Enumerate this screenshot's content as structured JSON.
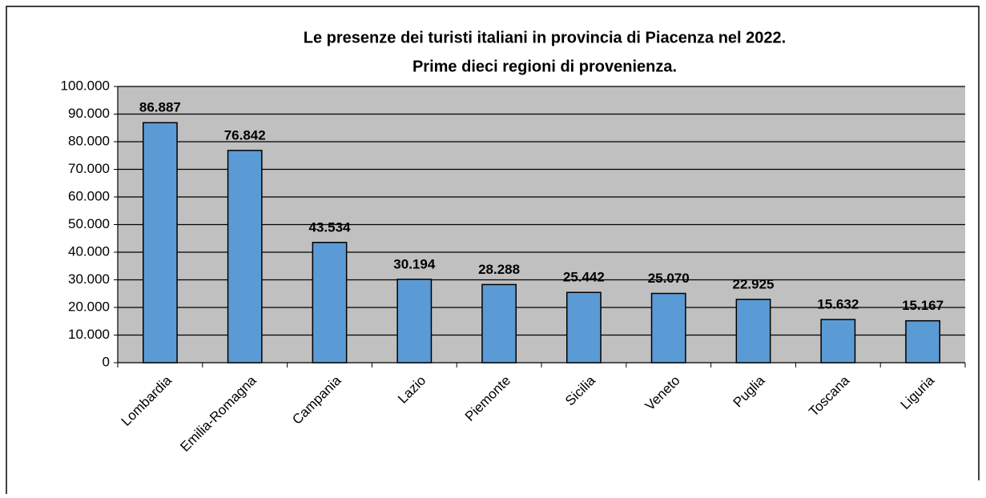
{
  "chart_data": {
    "type": "bar",
    "title": "Le presenze dei turisti italiani in provincia di Piacenza nel 2022.",
    "subtitle": "Prime dieci regioni di provenienza.",
    "categories": [
      "Lombardia",
      "Emilia-Romagna",
      "Campania",
      "Lazio",
      "Piemonte",
      "Sicilia",
      "Veneto",
      "Puglia",
      "Toscana",
      "Liguria"
    ],
    "values": [
      86887,
      76842,
      43534,
      30194,
      28288,
      25442,
      25070,
      22925,
      15632,
      15167
    ],
    "value_labels": [
      "86.887",
      "76.842",
      "43.534",
      "30.194",
      "28.288",
      "25.442",
      "25.070",
      "22.925",
      "15.632",
      "15.167"
    ],
    "color": "#5b9bd5",
    "ylim": [
      0,
      100000
    ],
    "yticks": [
      0,
      {
        "value": 10000,
        "label": "10.000"
      },
      {
        "value": 20000,
        "label": "20.000"
      },
      {
        "value": 30000,
        "label": "30.000"
      },
      {
        "value": 40000,
        "label": "40.000"
      },
      {
        "value": 50000,
        "label": "50.000"
      },
      {
        "value": 60000,
        "label": "60.000"
      },
      {
        "value": 70000,
        "label": "70.000"
      },
      {
        "value": 80000,
        "label": "80.000"
      },
      {
        "value": 90000,
        "label": "90.000"
      },
      {
        "value": 100000,
        "label": "100.000"
      }
    ],
    "grid": true
  }
}
